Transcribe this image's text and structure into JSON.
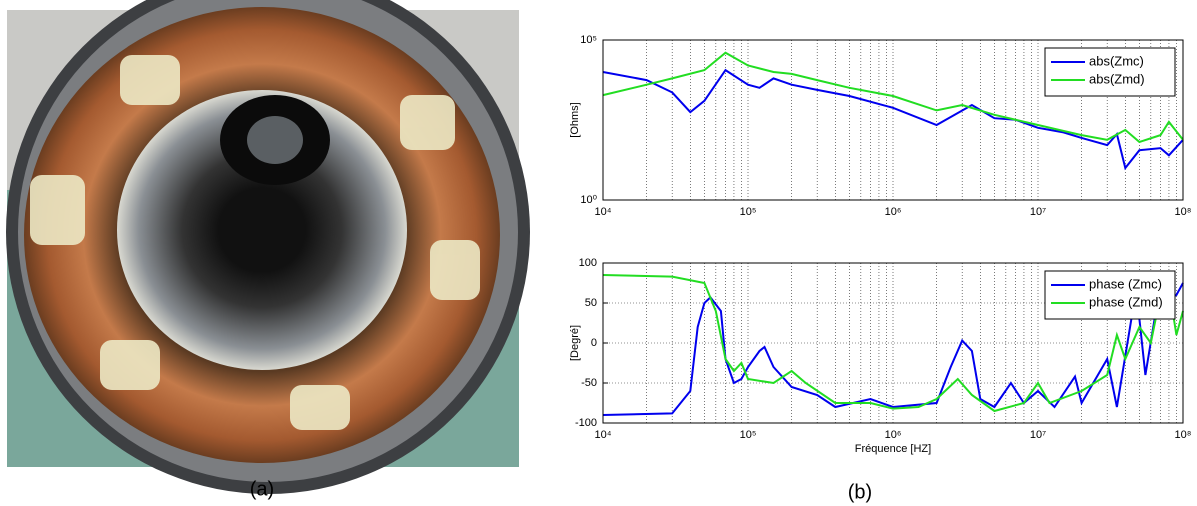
{
  "captions": [
    "(a)",
    "(b)"
  ],
  "chart_data": [
    {
      "type": "line",
      "ylabel": "[Ohms]",
      "log_x": true,
      "log_y": true,
      "minor_grid": true,
      "legend": "northeast",
      "xlim": [
        10000,
        100000000
      ],
      "xticks": [
        {
          "value": 10000,
          "label": "10⁴"
        },
        {
          "value": 100000,
          "label": "10⁵"
        },
        {
          "value": 1000000,
          "label": "10⁶"
        },
        {
          "value": 10000000,
          "label": "10⁷"
        },
        {
          "value": 100000000,
          "label": "10⁸"
        }
      ],
      "ylim": [
        1,
        100000
      ],
      "yticks": [
        {
          "value": 1,
          "label": "10⁰"
        },
        {
          "value": 100000,
          "label": "10⁵"
        }
      ],
      "series": [
        {
          "name": "abs(Zmc)",
          "color": "#0000ee",
          "x": [
            10000,
            20000,
            30000,
            40000,
            50000,
            70000,
            100000,
            120000,
            150000,
            200000,
            300000,
            500000,
            1000000,
            2000000,
            3500000,
            5000000,
            7000000,
            10000000,
            15000000,
            20000000,
            30000000,
            35000000,
            40000000,
            50000000,
            70000000,
            80000000,
            100000000
          ],
          "values": [
            10000,
            5600,
            2300,
            560,
            1260,
            11500,
            4000,
            3200,
            6300,
            4000,
            2750,
            1780,
            760,
            220,
            930,
            360,
            320,
            180,
            130,
            87,
            52,
            115,
            10,
            36,
            42,
            25,
            76
          ]
        },
        {
          "name": "abs(Zmd)",
          "color": "#22dd22",
          "x": [
            10000,
            20000,
            30000,
            50000,
            70000,
            100000,
            150000,
            200000,
            300000,
            500000,
            1000000,
            2000000,
            3000000,
            5000000,
            10000000,
            20000000,
            30000000,
            40000000,
            50000000,
            70000000,
            80000000,
            100000000
          ],
          "values": [
            1900,
            4000,
            6300,
            11500,
            40000,
            16000,
            10000,
            8700,
            5600,
            3200,
            1780,
            630,
            930,
            460,
            220,
            107,
            76,
            155,
            65,
            107,
            275,
            76
          ]
        }
      ]
    },
    {
      "type": "line",
      "ylabel": "[Degré]",
      "xlabel": "Fréquence [HZ]",
      "log_x": true,
      "grid": true,
      "minor_grid": true,
      "legend": "northeast",
      "xlim": [
        10000,
        100000000
      ],
      "xticks": [
        {
          "value": 10000,
          "label": "10⁴"
        },
        {
          "value": 100000,
          "label": "10⁵"
        },
        {
          "value": 1000000,
          "label": "10⁶"
        },
        {
          "value": 10000000,
          "label": "10⁷"
        },
        {
          "value": 100000000,
          "label": "10⁸"
        }
      ],
      "ylim": [
        -100,
        100
      ],
      "yticks": [
        -100,
        -50,
        0,
        50,
        100
      ],
      "series": [
        {
          "name": "phase (Zmc)",
          "color": "#0000ee",
          "x": [
            10000,
            30000,
            40000,
            45000,
            50000,
            55000,
            65000,
            70000,
            80000,
            90000,
            100000,
            120000,
            130000,
            150000,
            200000,
            300000,
            400000,
            700000,
            1000000,
            2000000,
            2500000,
            3000000,
            3500000,
            4000000,
            5000000,
            6500000,
            8000000,
            10000000,
            13000000,
            18000000,
            20000000,
            30000000,
            35000000,
            45000000,
            50000000,
            55000000,
            70000000,
            80000000,
            90000000,
            100000000
          ],
          "values": [
            -90,
            -88,
            -60,
            20,
            50,
            57,
            40,
            -20,
            -50,
            -45,
            -30,
            -10,
            -5,
            -30,
            -55,
            -65,
            -80,
            -70,
            -80,
            -75,
            -30,
            3,
            -10,
            -70,
            -80,
            -50,
            -75,
            -60,
            -80,
            -42,
            -75,
            -20,
            -80,
            40,
            30,
            -40,
            75,
            55,
            60,
            75
          ]
        },
        {
          "name": "phase (Zmd)",
          "color": "#22dd22",
          "x": [
            10000,
            30000,
            50000,
            60000,
            70000,
            80000,
            90000,
            100000,
            150000,
            200000,
            250000,
            400000,
            700000,
            1000000,
            1500000,
            2000000,
            2800000,
            3500000,
            5000000,
            8000000,
            10000000,
            12000000,
            20000000,
            30000000,
            35000000,
            40000000,
            50000000,
            60000000,
            70000000,
            80000000,
            90000000,
            100000000
          ],
          "values": [
            85,
            83,
            75,
            40,
            -20,
            -35,
            -25,
            -45,
            -50,
            -35,
            -50,
            -75,
            -75,
            -82,
            -80,
            -70,
            -45,
            -65,
            -85,
            -75,
            -50,
            -75,
            -60,
            -40,
            10,
            -20,
            20,
            0,
            60,
            70,
            10,
            40
          ]
        }
      ]
    }
  ]
}
